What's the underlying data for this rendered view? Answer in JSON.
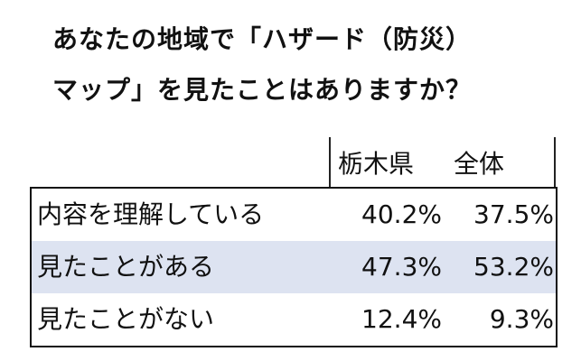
{
  "title": [
    "あなたの地域で「ハザード（防災）",
    "マップ」を見たことはありますか？"
  ],
  "table": {
    "header": [
      "栃木県",
      "全体"
    ],
    "rows": [
      [
        "内容を理解している",
        "40.2%",
        "37.5%"
      ],
      [
        "見たことがある",
        "47.3%",
        "53.2%"
      ],
      [
        "見たことがない",
        "12.4%",
        "9.3%"
      ]
    ]
  }
}
